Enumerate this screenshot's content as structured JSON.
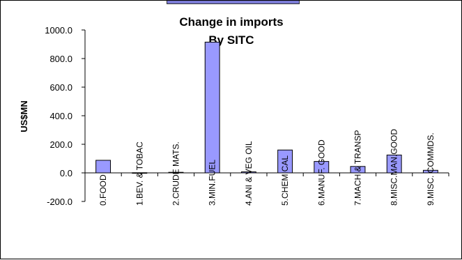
{
  "colors": {
    "bar_fill": "#9999ff",
    "bar_stroke": "#000000",
    "axis": "#000000",
    "background": "#ffffff"
  },
  "chart_data": {
    "type": "bar",
    "title": "Change in imports",
    "subtitle": "By SITC",
    "xlabel": "",
    "ylabel": "US$MN",
    "ylim": [
      -200,
      1000
    ],
    "ytick_step": 200,
    "yticks": [
      "-200.0",
      "0.0",
      "200.0",
      "400.0",
      "600.0",
      "800.0",
      "1000.0"
    ],
    "grid": false,
    "legend": "none",
    "categories": [
      "0.FOOD",
      "1.BEV. & TOBAC",
      "2.CRUDE MATS.",
      "3.MIN.FUEL",
      "4.ANI & VEG OIL",
      "5.CHEMICAL",
      "6.MANUF. GOOD",
      "7.MACH.& TRANSP",
      "8.MISC.MAN.GOOD",
      "9.MISC. COMMDS."
    ],
    "values": [
      88,
      1,
      4,
      915,
      7,
      160,
      80,
      45,
      125,
      18
    ]
  }
}
